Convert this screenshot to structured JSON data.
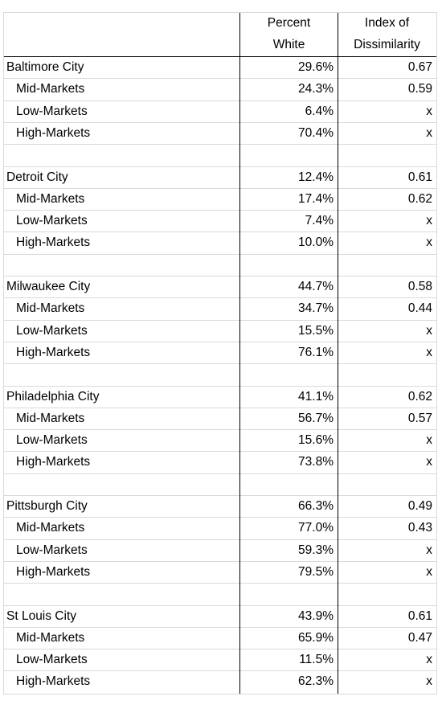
{
  "chart_data": {
    "type": "table",
    "columns": [
      "",
      "Percent White",
      "Index of Dissimilarity"
    ],
    "header": {
      "col1": [
        "Percent",
        "White"
      ],
      "col2": [
        "Index of",
        "Dissimilarity"
      ]
    },
    "rows": [
      {
        "label": "Baltimore City",
        "level": 0,
        "pct": "29.6%",
        "index": "0.67"
      },
      {
        "label": "Mid-Markets",
        "level": 1,
        "pct": "24.3%",
        "index": "0.59"
      },
      {
        "label": "Low-Markets",
        "level": 1,
        "pct": "6.4%",
        "index": "x"
      },
      {
        "label": "High-Markets",
        "level": 1,
        "pct": "70.4%",
        "index": "x"
      },
      {
        "label": "",
        "level": 0,
        "pct": "",
        "index": ""
      },
      {
        "label": "Detroit City",
        "level": 0,
        "pct": "12.4%",
        "index": "0.61"
      },
      {
        "label": "Mid-Markets",
        "level": 1,
        "pct": "17.4%",
        "index": "0.62"
      },
      {
        "label": "Low-Markets",
        "level": 1,
        "pct": "7.4%",
        "index": "x"
      },
      {
        "label": "High-Markets",
        "level": 1,
        "pct": "10.0%",
        "index": "x"
      },
      {
        "label": "",
        "level": 0,
        "pct": "",
        "index": ""
      },
      {
        "label": "Milwaukee City",
        "level": 0,
        "pct": "44.7%",
        "index": "0.58"
      },
      {
        "label": "Mid-Markets",
        "level": 1,
        "pct": "34.7%",
        "index": "0.44"
      },
      {
        "label": "Low-Markets",
        "level": 1,
        "pct": "15.5%",
        "index": "x"
      },
      {
        "label": "High-Markets",
        "level": 1,
        "pct": "76.1%",
        "index": "x"
      },
      {
        "label": "",
        "level": 0,
        "pct": "",
        "index": ""
      },
      {
        "label": "Philadelphia City",
        "level": 0,
        "pct": "41.1%",
        "index": "0.62"
      },
      {
        "label": "Mid-Markets",
        "level": 1,
        "pct": "56.7%",
        "index": "0.57"
      },
      {
        "label": "Low-Markets",
        "level": 1,
        "pct": "15.6%",
        "index": "x"
      },
      {
        "label": "High-Markets",
        "level": 1,
        "pct": "73.8%",
        "index": "x"
      },
      {
        "label": "",
        "level": 0,
        "pct": "",
        "index": ""
      },
      {
        "label": "Pittsburgh City",
        "level": 0,
        "pct": "66.3%",
        "index": "0.49"
      },
      {
        "label": "Mid-Markets",
        "level": 1,
        "pct": "77.0%",
        "index": "0.43"
      },
      {
        "label": "Low-Markets",
        "level": 1,
        "pct": "59.3%",
        "index": "x"
      },
      {
        "label": "High-Markets",
        "level": 1,
        "pct": "79.5%",
        "index": "x"
      },
      {
        "label": "",
        "level": 0,
        "pct": "",
        "index": ""
      },
      {
        "label": "St Louis City",
        "level": 0,
        "pct": "43.9%",
        "index": "0.61"
      },
      {
        "label": "Mid-Markets",
        "level": 1,
        "pct": "65.9%",
        "index": "0.47"
      },
      {
        "label": "Low-Markets",
        "level": 1,
        "pct": "11.5%",
        "index": "x"
      },
      {
        "label": "High-Markets",
        "level": 1,
        "pct": "62.3%",
        "index": "x"
      }
    ]
  }
}
